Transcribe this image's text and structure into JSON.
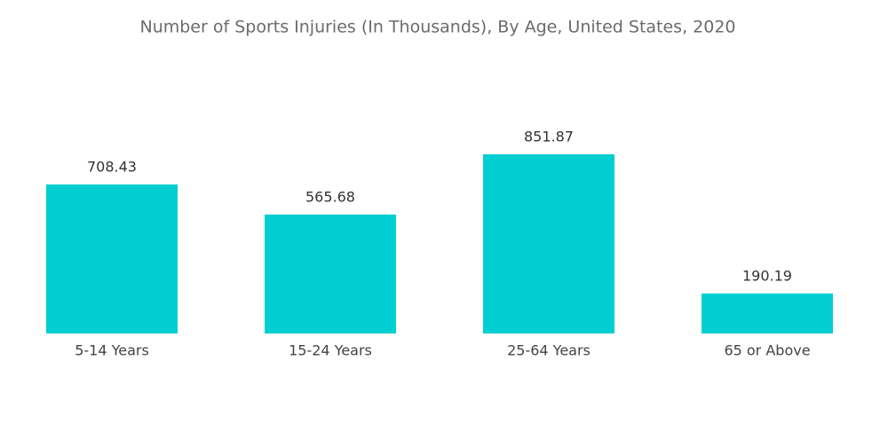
{
  "chart_data": {
    "type": "bar",
    "title": "Number of Sports Injuries (In Thousands), By Age, United States, 2020",
    "categories": [
      "5-14 Years",
      "15-24 Years",
      "25-64 Years",
      "65 or Above"
    ],
    "values": [
      708.43,
      565.68,
      851.87,
      190.19
    ],
    "color": "#00ced1"
  }
}
